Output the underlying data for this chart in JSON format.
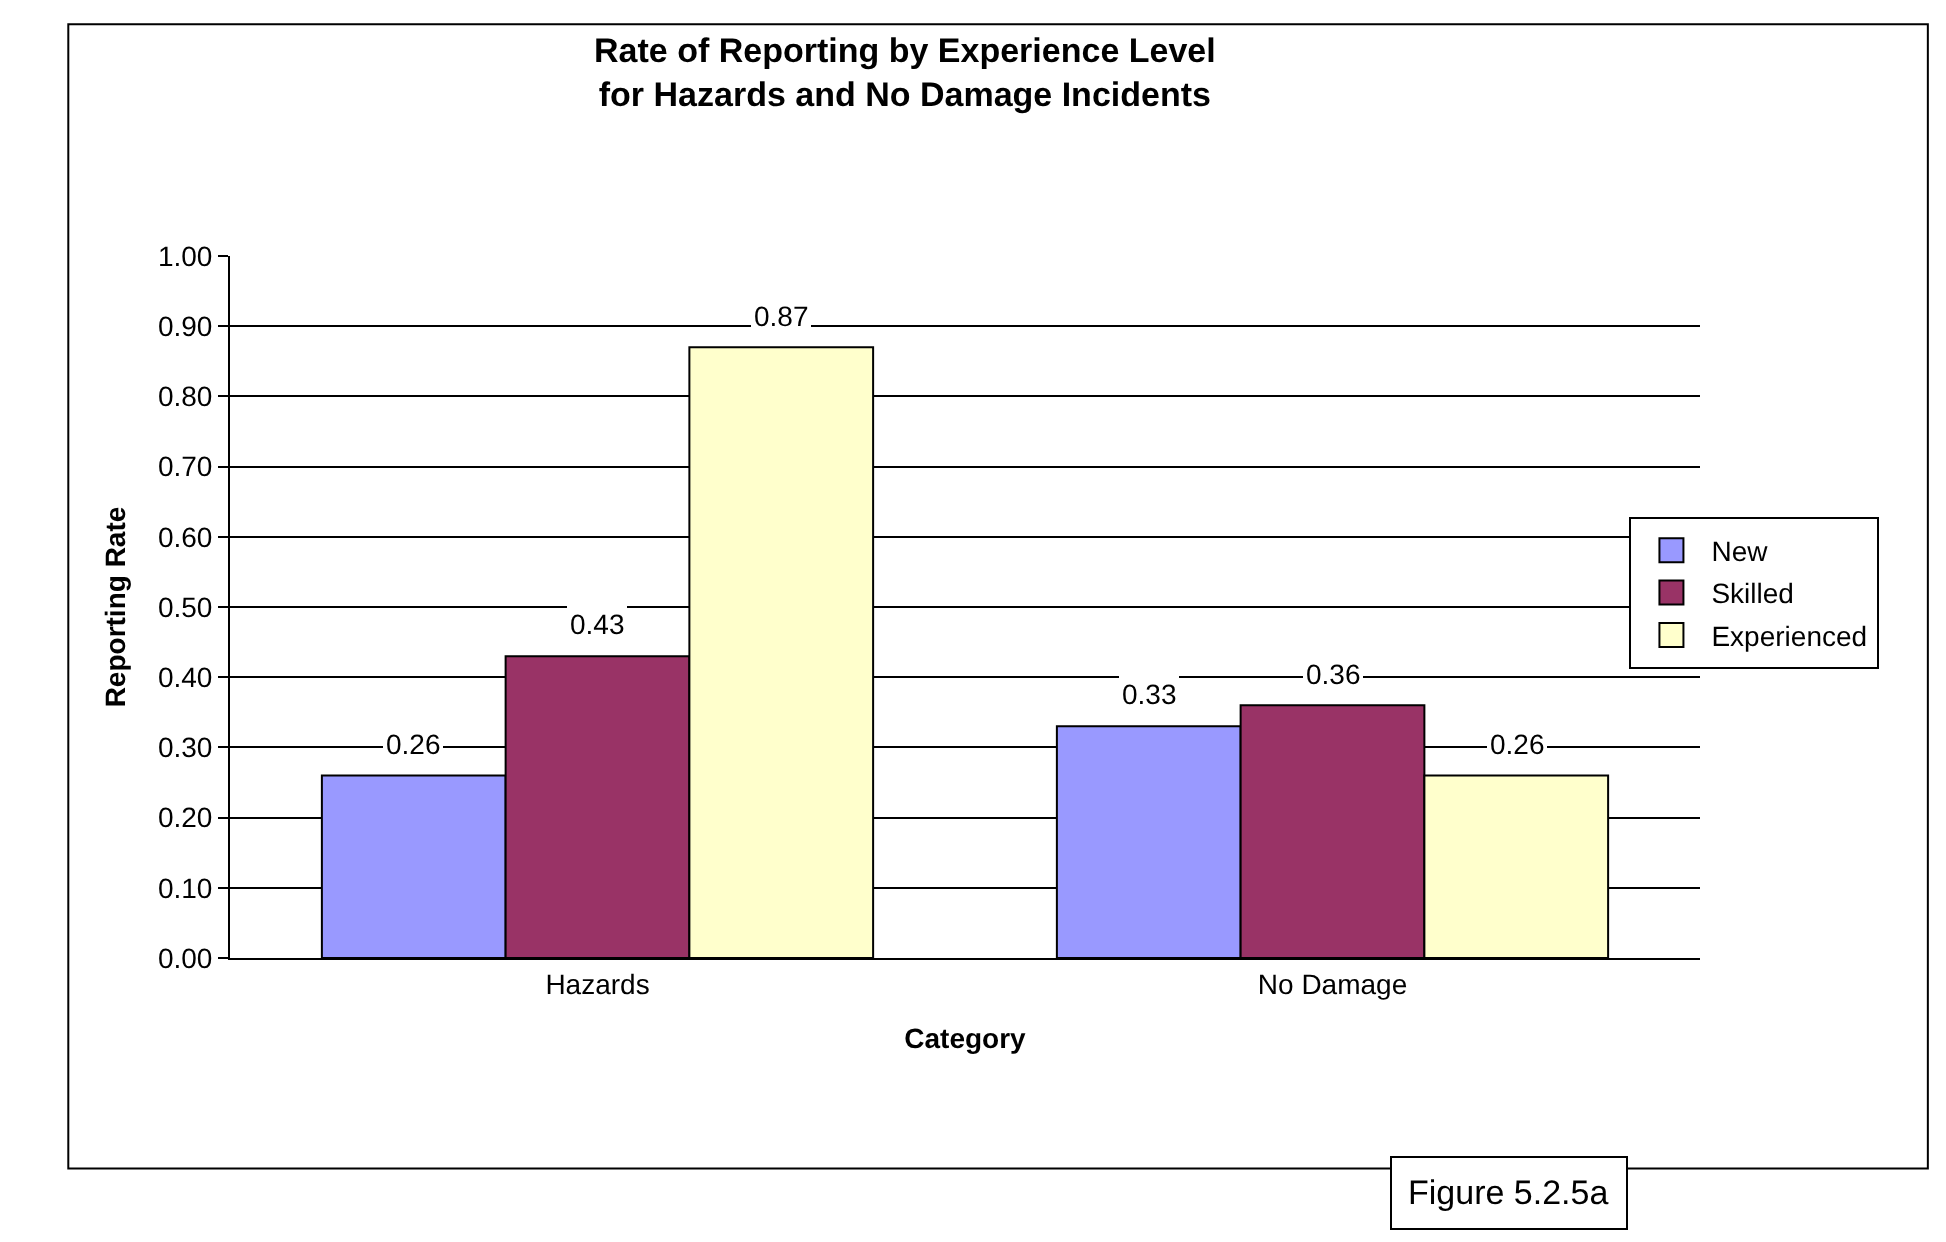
{
  "chart_data": {
    "type": "bar",
    "title": "Rate of Reporting by Experience Level\nfor Hazards and No Damage Incidents",
    "xlabel": "Category",
    "ylabel": "Reporting Rate",
    "categories": [
      "Hazards",
      "No Damage"
    ],
    "series": [
      {
        "name": "New",
        "color": "#9999ff",
        "values": [
          0.26,
          0.33
        ]
      },
      {
        "name": "Skilled",
        "color": "#993366",
        "values": [
          0.43,
          0.36
        ]
      },
      {
        "name": "Experienced",
        "color": "#ffffcc",
        "values": [
          0.87,
          0.26
        ]
      }
    ],
    "ylim": [
      0,
      1
    ],
    "yticks": [
      {
        "value": 0,
        "label": "0.00"
      },
      {
        "value": 0.1,
        "label": "0.10"
      },
      {
        "value": 0.2,
        "label": "0.20"
      },
      {
        "value": 0.3,
        "label": "0.30"
      },
      {
        "value": 0.4,
        "label": "0.40"
      },
      {
        "value": 0.5,
        "label": "0.50"
      },
      {
        "value": 0.6,
        "label": "0.60"
      },
      {
        "value": 0.7,
        "label": "0.70"
      },
      {
        "value": 0.8,
        "label": "0.80"
      },
      {
        "value": 0.9,
        "label": "0.90"
      },
      {
        "value": 1,
        "label": "1.00"
      }
    ],
    "grid": "y",
    "legend": "right",
    "data_labels": true,
    "annotations": [
      "Figure 5.2.5a"
    ]
  }
}
